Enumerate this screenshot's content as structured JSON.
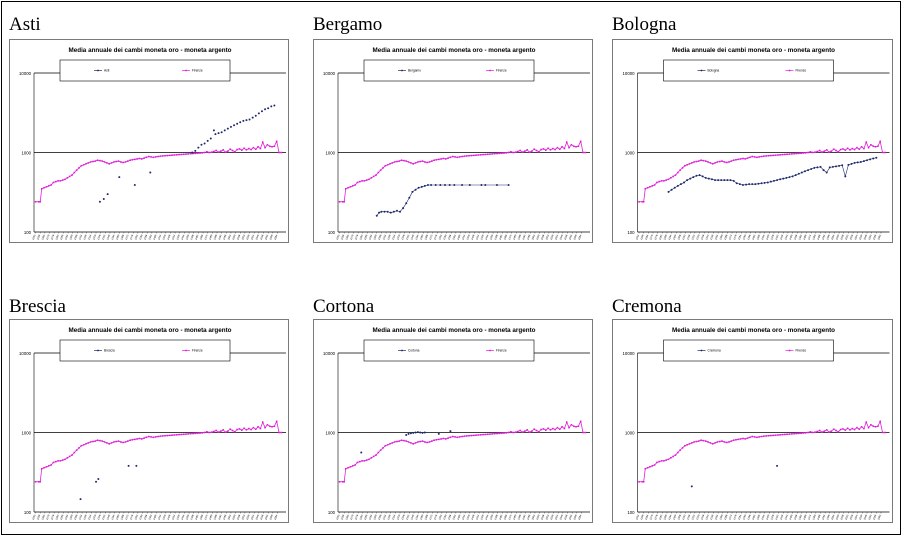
{
  "chart_data": [
    {
      "type": "scatter",
      "title": "Media annuale dei cambi moneta oro - moneta argento",
      "city_label": "Asti",
      "xlabel": "",
      "ylabel": "",
      "y_scale": "log",
      "ylim": [
        100,
        10000
      ],
      "y_ticks": [
        "100",
        "1000",
        "10000"
      ],
      "grid": "horizontal at major ticks",
      "legend": "top box",
      "series": [
        {
          "name": "Asti",
          "color": "#1f2a6b",
          "points": [
            [
              1335,
              240
            ],
            [
              1340,
              260
            ],
            [
              1345,
              300
            ],
            [
              1360,
              490
            ],
            [
              1380,
              390
            ],
            [
              1400,
              560
            ],
            [
              1454,
              1000
            ],
            [
              1458,
              1050
            ],
            [
              1462,
              1150
            ],
            [
              1466,
              1250
            ],
            [
              1470,
              1300
            ],
            [
              1474,
              1400
            ],
            [
              1478,
              1500
            ],
            [
              1482,
              1900
            ],
            [
              1484,
              1700
            ],
            [
              1488,
              1750
            ],
            [
              1492,
              1800
            ],
            [
              1496,
              1900
            ],
            [
              1500,
              2000
            ],
            [
              1504,
              2100
            ],
            [
              1508,
              2200
            ],
            [
              1512,
              2300
            ],
            [
              1516,
              2400
            ],
            [
              1520,
              2500
            ],
            [
              1524,
              2550
            ],
            [
              1528,
              2600
            ],
            [
              1532,
              2750
            ],
            [
              1536,
              2900
            ],
            [
              1540,
              3100
            ],
            [
              1544,
              3300
            ],
            [
              1548,
              3500
            ],
            [
              1552,
              3600
            ],
            [
              1556,
              3800
            ],
            [
              1560,
              3900
            ]
          ]
        },
        {
          "name": "Firenze",
          "color": "#e020d8"
        }
      ]
    },
    {
      "type": "scatter",
      "title": "Media annuale dei cambi moneta oro - moneta argento",
      "city_label": "Bergamo",
      "xlabel": "",
      "ylabel": "",
      "y_scale": "log",
      "ylim": [
        100,
        10000
      ],
      "y_ticks": [
        "100",
        "1000",
        "10000"
      ],
      "grid": "horizontal at major ticks",
      "legend": "top box",
      "series": [
        {
          "name": "Bergamo",
          "color": "#1f2a6b",
          "points": [
            [
              1300,
              160
            ],
            [
              1303,
              175
            ],
            [
              1306,
              180
            ],
            [
              1310,
              180
            ],
            [
              1314,
              180
            ],
            [
              1318,
              175
            ],
            [
              1322,
              180
            ],
            [
              1326,
              185
            ],
            [
              1330,
              180
            ],
            [
              1334,
              200
            ],
            [
              1338,
              230
            ],
            [
              1342,
              270
            ],
            [
              1346,
              320
            ],
            [
              1350,
              340
            ],
            [
              1354,
              360
            ],
            [
              1358,
              370
            ],
            [
              1362,
              380
            ],
            [
              1366,
              390
            ],
            [
              1370,
              390
            ],
            [
              1376,
              390
            ],
            [
              1382,
              390
            ],
            [
              1388,
              390
            ],
            [
              1394,
              390
            ],
            [
              1400,
              390
            ],
            [
              1410,
              390
            ],
            [
              1420,
              390
            ],
            [
              1435,
              390
            ],
            [
              1440,
              390
            ],
            [
              1455,
              390
            ],
            [
              1470,
              390
            ]
          ]
        },
        {
          "name": "Firenze",
          "color": "#e020d8"
        }
      ]
    },
    {
      "type": "scatter",
      "title": "Media annuale dei cambi moneta oro - moneta argento",
      "city_label": "Bologna",
      "xlabel": "",
      "ylabel": "",
      "y_scale": "log",
      "ylim": [
        100,
        10000
      ],
      "y_ticks": [
        "100",
        "1000",
        "10000"
      ],
      "grid": "horizontal at major ticks",
      "legend": "top box",
      "series": [
        {
          "name": "Bologna",
          "color": "#1f2a6b",
          "points": [
            [
              1290,
              320
            ],
            [
              1294,
              340
            ],
            [
              1298,
              360
            ],
            [
              1302,
              380
            ],
            [
              1306,
              400
            ],
            [
              1310,
              420
            ],
            [
              1314,
              450
            ],
            [
              1318,
              470
            ],
            [
              1322,
              490
            ],
            [
              1326,
              510
            ],
            [
              1330,
              520
            ],
            [
              1334,
              500
            ],
            [
              1338,
              480
            ],
            [
              1342,
              470
            ],
            [
              1346,
              460
            ],
            [
              1350,
              450
            ],
            [
              1354,
              450
            ],
            [
              1358,
              450
            ],
            [
              1362,
              450
            ],
            [
              1366,
              450
            ],
            [
              1370,
              450
            ],
            [
              1374,
              440
            ],
            [
              1378,
              410
            ],
            [
              1382,
              400
            ],
            [
              1386,
              390
            ],
            [
              1390,
              395
            ],
            [
              1394,
              400
            ],
            [
              1398,
              400
            ],
            [
              1402,
              400
            ],
            [
              1406,
              405
            ],
            [
              1410,
              410
            ],
            [
              1414,
              415
            ],
            [
              1418,
              420
            ],
            [
              1422,
              430
            ],
            [
              1426,
              440
            ],
            [
              1430,
              450
            ],
            [
              1434,
              460
            ],
            [
              1438,
              470
            ],
            [
              1442,
              480
            ],
            [
              1446,
              490
            ],
            [
              1450,
              500
            ],
            [
              1454,
              520
            ],
            [
              1458,
              540
            ],
            [
              1462,
              560
            ],
            [
              1466,
              580
            ],
            [
              1470,
              600
            ],
            [
              1474,
              620
            ],
            [
              1478,
              640
            ],
            [
              1482,
              650
            ],
            [
              1486,
              660
            ],
            [
              1490,
              600
            ],
            [
              1494,
              560
            ],
            [
              1498,
              650
            ],
            [
              1502,
              660
            ],
            [
              1506,
              670
            ],
            [
              1510,
              680
            ],
            [
              1514,
              690
            ],
            [
              1518,
              500
            ],
            [
              1522,
              700
            ],
            [
              1526,
              720
            ],
            [
              1530,
              740
            ],
            [
              1534,
              750
            ],
            [
              1538,
              760
            ],
            [
              1542,
              780
            ],
            [
              1546,
              800
            ],
            [
              1550,
              820
            ],
            [
              1554,
              840
            ],
            [
              1558,
              860
            ]
          ]
        },
        {
          "name": "Firenze",
          "color": "#e020d8"
        }
      ]
    },
    {
      "type": "scatter",
      "title": "Media annuale dei cambi moneta oro - moneta argento",
      "city_label": "Brescia",
      "xlabel": "",
      "ylabel": "",
      "y_scale": "log",
      "ylim": [
        100,
        10000
      ],
      "y_ticks": [
        "100",
        "1000",
        "10000"
      ],
      "grid": "horizontal at major ticks",
      "legend": "top box",
      "series": [
        {
          "name": "Brescia",
          "color": "#1f2a6b",
          "points": [
            [
              1310,
              145
            ],
            [
              1330,
              240
            ],
            [
              1333,
              260
            ],
            [
              1372,
              380
            ],
            [
              1382,
              380
            ]
          ]
        },
        {
          "name": "Firenze",
          "color": "#e020d8"
        }
      ]
    },
    {
      "type": "scatter",
      "title": "Media annuale dei cambi moneta oro - moneta argento",
      "city_label": "Cortona",
      "xlabel": "",
      "ylabel": "",
      "y_scale": "log",
      "ylim": [
        100,
        10000
      ],
      "y_ticks": [
        "100",
        "1000",
        "10000"
      ],
      "grid": "horizontal at major ticks",
      "legend": "top box",
      "series": [
        {
          "name": "Cortona",
          "color": "#1f2a6b",
          "points": [
            [
              1280,
              560
            ],
            [
              1338,
              930
            ],
            [
              1341,
              960
            ],
            [
              1344,
              980
            ],
            [
              1347,
              990
            ],
            [
              1350,
              1000
            ],
            [
              1353,
              1010
            ],
            [
              1356,
              1000
            ],
            [
              1359,
              990
            ],
            [
              1362,
              1000
            ],
            [
              1380,
              960
            ],
            [
              1395,
              1040
            ]
          ]
        },
        {
          "name": "Firenze",
          "color": "#e020d8"
        }
      ]
    },
    {
      "type": "scatter",
      "title": "Media annuale dei cambi moneta oro - moneta argento",
      "city_label": "Cremona",
      "xlabel": "",
      "ylabel": "",
      "y_scale": "log",
      "ylim": [
        100,
        10000
      ],
      "y_ticks": [
        "100",
        "1000",
        "10000"
      ],
      "grid": "horizontal at major ticks",
      "legend": "top box",
      "series": [
        {
          "name": "Cremona",
          "color": "#1f2a6b",
          "points": [
            [
              1320,
              210
            ],
            [
              1430,
              380
            ]
          ]
        },
        {
          "name": "Firenze",
          "color": "#e020d8"
        }
      ]
    }
  ],
  "shared": {
    "firenze_series": [
      [
        1252,
        240
      ],
      [
        1256,
        240
      ],
      [
        1258,
        240
      ],
      [
        1260,
        350
      ],
      [
        1263,
        360
      ],
      [
        1266,
        370
      ],
      [
        1269,
        380
      ],
      [
        1272,
        390
      ],
      [
        1275,
        420
      ],
      [
        1278,
        430
      ],
      [
        1281,
        440
      ],
      [
        1284,
        440
      ],
      [
        1287,
        450
      ],
      [
        1290,
        460
      ],
      [
        1293,
        480
      ],
      [
        1296,
        500
      ],
      [
        1299,
        520
      ],
      [
        1302,
        560
      ],
      [
        1305,
        600
      ],
      [
        1308,
        640
      ],
      [
        1311,
        680
      ],
      [
        1314,
        700
      ],
      [
        1317,
        720
      ],
      [
        1320,
        740
      ],
      [
        1323,
        760
      ],
      [
        1326,
        770
      ],
      [
        1329,
        780
      ],
      [
        1332,
        800
      ],
      [
        1335,
        790
      ],
      [
        1338,
        780
      ],
      [
        1341,
        760
      ],
      [
        1344,
        740
      ],
      [
        1347,
        720
      ],
      [
        1350,
        740
      ],
      [
        1353,
        760
      ],
      [
        1356,
        770
      ],
      [
        1359,
        780
      ],
      [
        1362,
        760
      ],
      [
        1365,
        750
      ],
      [
        1368,
        760
      ],
      [
        1371,
        780
      ],
      [
        1374,
        800
      ],
      [
        1377,
        810
      ],
      [
        1380,
        820
      ],
      [
        1383,
        830
      ],
      [
        1386,
        840
      ],
      [
        1389,
        830
      ],
      [
        1392,
        850
      ],
      [
        1395,
        870
      ],
      [
        1398,
        890
      ],
      [
        1401,
        880
      ],
      [
        1404,
        870
      ],
      [
        1407,
        880
      ],
      [
        1410,
        890
      ],
      [
        1413,
        900
      ],
      [
        1416,
        905
      ],
      [
        1419,
        910
      ],
      [
        1422,
        915
      ],
      [
        1425,
        920
      ],
      [
        1428,
        925
      ],
      [
        1431,
        930
      ],
      [
        1434,
        935
      ],
      [
        1437,
        940
      ],
      [
        1440,
        945
      ],
      [
        1443,
        950
      ],
      [
        1446,
        955
      ],
      [
        1449,
        960
      ],
      [
        1452,
        965
      ],
      [
        1455,
        970
      ],
      [
        1458,
        975
      ],
      [
        1461,
        980
      ],
      [
        1464,
        985
      ],
      [
        1467,
        990
      ],
      [
        1470,
        1000
      ],
      [
        1473,
        1020
      ],
      [
        1476,
        1000
      ],
      [
        1479,
        1010
      ],
      [
        1482,
        1030
      ],
      [
        1485,
        1060
      ],
      [
        1488,
        1010
      ],
      [
        1491,
        1040
      ],
      [
        1494,
        1080
      ],
      [
        1497,
        1010
      ],
      [
        1500,
        1040
      ],
      [
        1503,
        1100
      ],
      [
        1506,
        1060
      ],
      [
        1509,
        1020
      ],
      [
        1512,
        1090
      ],
      [
        1515,
        1110
      ],
      [
        1518,
        1070
      ],
      [
        1521,
        1130
      ],
      [
        1524,
        1080
      ],
      [
        1527,
        1120
      ],
      [
        1530,
        1090
      ],
      [
        1533,
        1150
      ],
      [
        1536,
        1100
      ],
      [
        1539,
        1180
      ],
      [
        1542,
        1120
      ],
      [
        1545,
        1350
      ],
      [
        1548,
        1150
      ],
      [
        1551,
        1250
      ],
      [
        1554,
        1200
      ],
      [
        1557,
        1180
      ],
      [
        1560,
        1200
      ],
      [
        1563,
        1380
      ],
      [
        1566,
        1000
      ],
      [
        1569,
        1000
      ]
    ],
    "x_range": [
      1250,
      1575
    ],
    "x_tick_start": 1252,
    "x_tick_step": 6
  }
}
